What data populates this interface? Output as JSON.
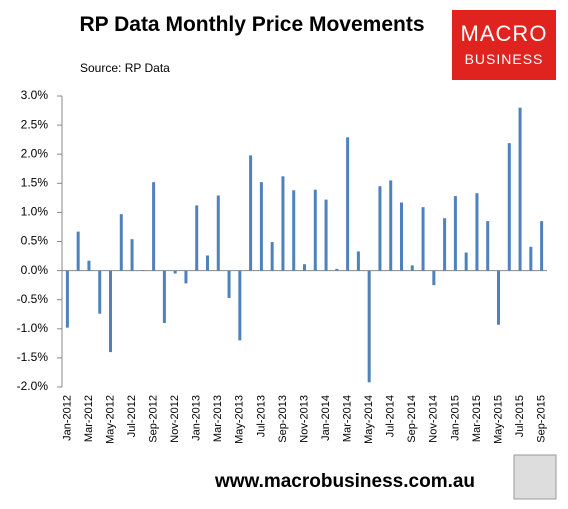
{
  "chart_data": {
    "type": "bar",
    "title": "RP Data Monthly Price Movements",
    "source": "Source: RP Data",
    "logo": [
      "MACRO",
      "BUSINESS"
    ],
    "footer": "www.macrobusiness.com.au",
    "color": "#4f81bd",
    "categories": [
      "Jan-2012",
      null,
      "Mar-2012",
      null,
      "May-2012",
      null,
      "Jul-2012",
      null,
      "Sep-2012",
      null,
      "Nov-2012",
      null,
      "Jan-2013",
      null,
      "Mar-2013",
      null,
      "May-2013",
      null,
      "Jul-2013",
      null,
      "Sep-2013",
      null,
      "Nov-2013",
      null,
      "Jan-2014",
      null,
      "Mar-2014",
      null,
      "May-2014",
      null,
      "Jul-2014",
      null,
      "Sep-2014",
      null,
      "Nov-2014",
      null,
      "Jan-2015",
      null,
      "Mar-2015",
      null,
      "May-2015",
      null,
      "Jul-2015",
      null,
      "Sep-2015"
    ],
    "values": [
      -0.98,
      0.67,
      0.17,
      -0.74,
      -1.4,
      0.97,
      0.54,
      0.01,
      1.52,
      -0.9,
      -0.05,
      -0.22,
      1.12,
      0.26,
      1.29,
      -0.47,
      -1.2,
      1.98,
      1.52,
      0.49,
      1.62,
      1.38,
      0.11,
      1.39,
      1.22,
      0.03,
      2.29,
      0.33,
      -1.92,
      1.45,
      1.55,
      1.17,
      0.09,
      1.09,
      -0.25,
      0.9,
      1.28,
      0.31,
      1.33,
      0.85,
      -0.93,
      2.19,
      2.8,
      0.41,
      0.85
    ],
    "ylim": [
      -2,
      3
    ],
    "yticks": [
      {
        "value": 3,
        "label": "3.0%"
      },
      {
        "value": 2.5,
        "label": "2.5%"
      },
      {
        "value": 2,
        "label": "2.0%"
      },
      {
        "value": 1.5,
        "label": "1.5%"
      },
      {
        "value": 1,
        "label": "1.0%"
      },
      {
        "value": 0.5,
        "label": "0.5%"
      },
      {
        "value": 0,
        "label": "0.0%"
      },
      {
        "value": -0.5,
        "label": "-0.5%"
      },
      {
        "value": -1,
        "label": "-1.0%"
      },
      {
        "value": -1.5,
        "label": "-1.5%"
      },
      {
        "value": -2,
        "label": "-2.0%"
      }
    ],
    "grid": false
  }
}
